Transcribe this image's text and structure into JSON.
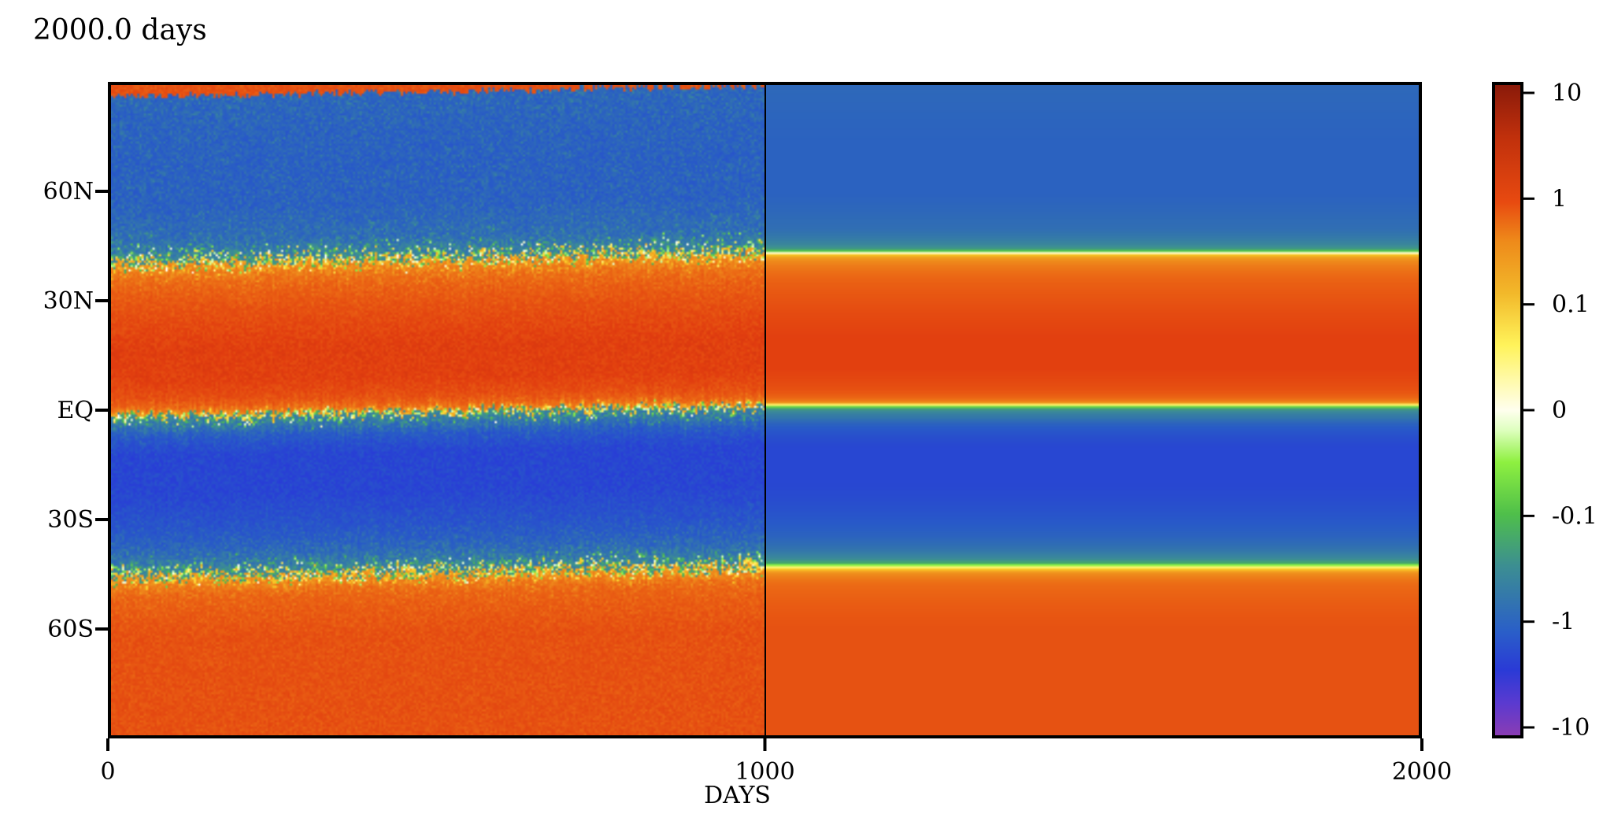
{
  "title": "2000.0 days",
  "chart_data": {
    "type": "heatmap",
    "title": "2000.0 days",
    "xlabel": "DAYS",
    "ylabel": "",
    "xlim": [
      0,
      2000
    ],
    "ylim": [
      -90,
      90
    ],
    "x_ticks": [
      {
        "value": 0,
        "label": "0"
      },
      {
        "value": 1000,
        "label": "1000"
      },
      {
        "value": 2000,
        "label": "2000"
      }
    ],
    "y_ticks": [
      {
        "value": 60,
        "label": "60N"
      },
      {
        "value": 30,
        "label": "30N"
      },
      {
        "value": 0,
        "label": "EQ"
      },
      {
        "value": -30,
        "label": "30S"
      },
      {
        "value": -60,
        "label": "60S"
      }
    ],
    "colorbar": {
      "scale": "symlog",
      "ticks": [
        {
          "value": 10,
          "label": "10"
        },
        {
          "value": 1,
          "label": "1"
        },
        {
          "value": 0.1,
          "label": "0.1"
        },
        {
          "value": 0,
          "label": "0"
        },
        {
          "value": -0.1,
          "label": "-0.1"
        },
        {
          "value": -1,
          "label": "-1"
        },
        {
          "value": -10,
          "label": "-10"
        }
      ],
      "range": [
        -10,
        10
      ]
    },
    "vertical_marker_x": 1000,
    "latitude_profile": {
      "lat": [
        90,
        75,
        60,
        50,
        45,
        40,
        30,
        20,
        12,
        6,
        2,
        -2,
        -10,
        -20,
        -30,
        -40,
        -44,
        -48,
        -60,
        -75,
        -90
      ],
      "steady_values": [
        -0.8,
        -1.0,
        -1.0,
        -0.6,
        -0.15,
        0.5,
        2.0,
        4.0,
        4.0,
        2.0,
        0.05,
        -0.5,
        -3.0,
        -3.0,
        -1.5,
        -0.3,
        0.1,
        0.8,
        2.0,
        2.0,
        2.0
      ]
    },
    "grid": false
  }
}
